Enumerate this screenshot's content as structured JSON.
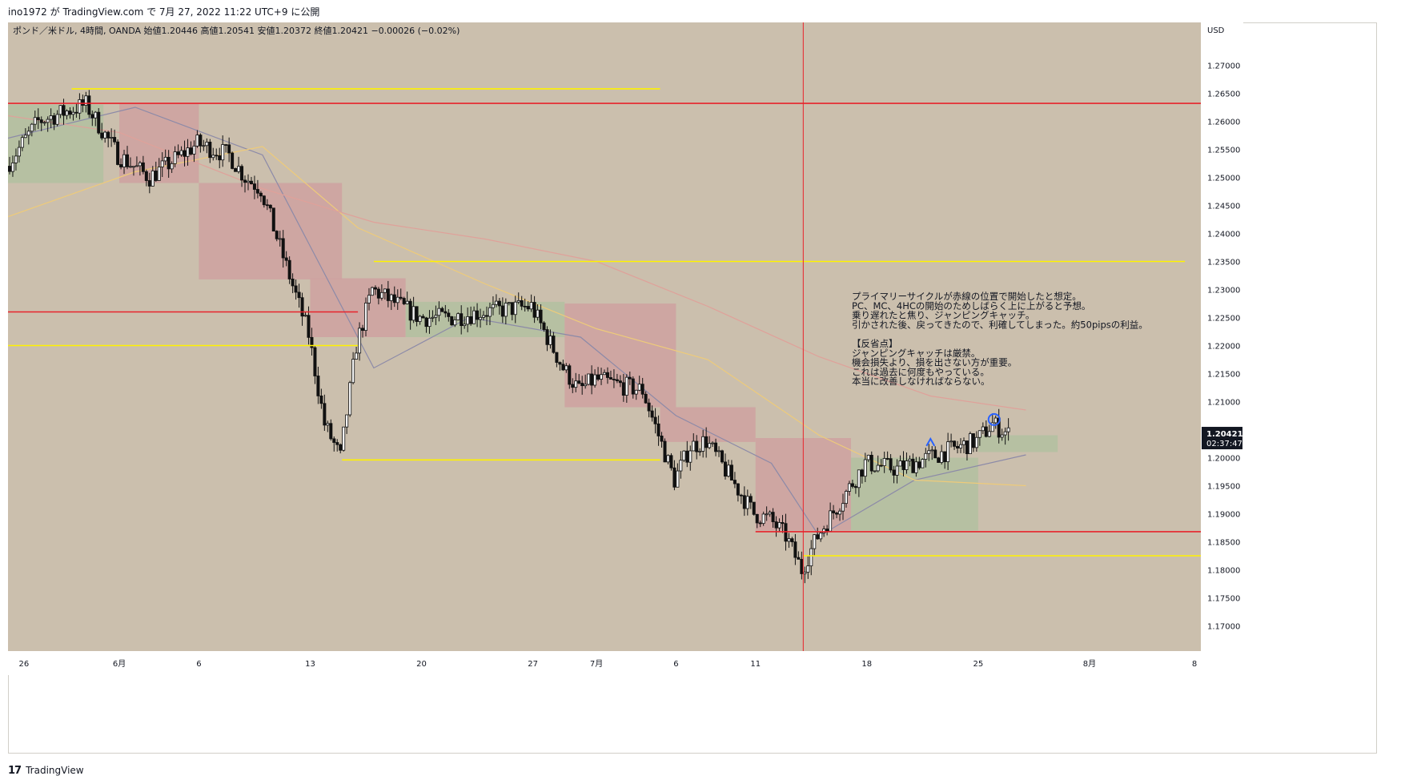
{
  "header": {
    "publish_line": "ino1972 が TradingView.com で 7月 27, 2022 11:22 UTC+9 に公開",
    "symbol_info": "ポンド／米ドル, 4時間, OANDA  始値1.20446  高値1.20541  安値1.20372  終値1.20421  −0.00026 (−0.02%)"
  },
  "footer": {
    "logo_mark": "17",
    "brand": "TradingView"
  },
  "colors": {
    "background": "#cbbfad",
    "bull_box": "#b3c0a0",
    "bear_box": "#cfa1a0",
    "red_line": "#e8232b",
    "yellow_line": "#fff200",
    "candle": "#111111",
    "ma_fast": "#8c8aa8",
    "ma_mid": "#eecb7a",
    "ma_slow": "#dfa19a"
  },
  "price_axis": {
    "currency": "USD",
    "current_price": "1.20421",
    "countdown": "02:37:47"
  },
  "annotation": {
    "lines": [
      "プライマリーサイクルが赤線の位置で開始したと想定。",
      "PC、MC、4HCの開始のためしばらく上に上がると予想。",
      "乗り遅れたと焦り、ジャンピングキャッチ。",
      "引かされた後、戻ってきたので、利確してしまった。約50pipsの利益。",
      "",
      "【反省点】",
      "ジャンピングキャッチは厳禁。",
      "機会損失より、損を出さない方が重要。",
      "これは過去に何度もやっている。",
      "本当に改善しなければならない。"
    ]
  },
  "chart_data": {
    "type": "candlestick",
    "title": "ポンド／米ドル, 4時間, OANDA",
    "ohlc_last": {
      "open": 1.20446,
      "high": 1.20541,
      "low": 1.20372,
      "close": 1.20421,
      "change": -0.00026,
      "change_pct": -0.02
    },
    "y_axis": {
      "ticks": [
        "1.27000",
        "1.26500",
        "1.26000",
        "1.25500",
        "1.25000",
        "1.24500",
        "1.24000",
        "1.23500",
        "1.23000",
        "1.22500",
        "1.22000",
        "1.21500",
        "1.21000",
        "1.20500",
        "1.20000",
        "1.19500",
        "1.19000",
        "1.18500",
        "1.18000",
        "1.17500",
        "1.17000"
      ],
      "range": [
        1.1655,
        1.2745
      ]
    },
    "x_axis": {
      "ticks": [
        "26",
        "6月",
        "6",
        "13",
        "20",
        "27",
        "7月",
        "6",
        "11",
        "18",
        "25",
        "8月",
        "8"
      ],
      "range": [
        "2022-05-25",
        "2022-08-08"
      ]
    },
    "horizontal_lines": [
      {
        "color": "red",
        "price": 1.2632,
        "from": "2022-05-25",
        "to": "2022-08-08"
      },
      {
        "color": "red",
        "price": 1.226,
        "from": "2022-05-25",
        "to": "2022-06-16"
      },
      {
        "color": "red",
        "price": 1.1868,
        "from": "2022-07-11",
        "to": "2022-08-08"
      },
      {
        "color": "yellow",
        "price": 1.2658,
        "from": "2022-05-29",
        "to": "2022-07-05"
      },
      {
        "color": "yellow",
        "price": 1.235,
        "from": "2022-06-17",
        "to": "2022-08-07"
      },
      {
        "color": "yellow",
        "price": 1.22,
        "from": "2022-05-25",
        "to": "2022-06-16"
      },
      {
        "color": "yellow",
        "price": 1.1996,
        "from": "2022-06-15",
        "to": "2022-07-05"
      },
      {
        "color": "yellow",
        "price": 1.1825,
        "from": "2022-07-14",
        "to": "2022-08-08"
      }
    ],
    "vertical_lines": [
      {
        "color": "red",
        "date": "2022-07-14"
      }
    ],
    "boxes": [
      {
        "kind": "bull",
        "from": "2022-05-25",
        "to": "2022-05-31",
        "low": 1.249,
        "high": 1.263
      },
      {
        "kind": "bear",
        "from": "2022-06-01",
        "to": "2022-06-06",
        "low": 1.249,
        "high": 1.2632
      },
      {
        "kind": "bear",
        "from": "2022-06-06",
        "to": "2022-06-15",
        "low": 1.2318,
        "high": 1.249
      },
      {
        "kind": "bear",
        "from": "2022-06-13",
        "to": "2022-06-19",
        "low": 1.2215,
        "high": 1.232
      },
      {
        "kind": "bull",
        "from": "2022-06-19",
        "to": "2022-06-29",
        "low": 1.2215,
        "high": 1.2278
      },
      {
        "kind": "bear",
        "from": "2022-06-29",
        "to": "2022-07-06",
        "low": 1.209,
        "high": 1.2275
      },
      {
        "kind": "bear",
        "from": "2022-07-05",
        "to": "2022-07-11",
        "low": 1.2028,
        "high": 1.209
      },
      {
        "kind": "bear",
        "from": "2022-07-11",
        "to": "2022-07-17",
        "low": 1.187,
        "high": 1.2035
      },
      {
        "kind": "bull",
        "from": "2022-07-17",
        "to": "2022-07-25",
        "low": 1.187,
        "high": 1.2
      },
      {
        "kind": "bull",
        "from": "2022-07-25",
        "to": "2022-07-30",
        "low": 1.201,
        "high": 1.204
      }
    ],
    "moving_averages": [
      {
        "name": "fast",
        "points": [
          [
            "2022-05-25",
            1.257
          ],
          [
            "2022-06-02",
            1.2625
          ],
          [
            "2022-06-10",
            1.254
          ],
          [
            "2022-06-17",
            1.216
          ],
          [
            "2022-06-23",
            1.225
          ],
          [
            "2022-06-30",
            1.2215
          ],
          [
            "2022-07-06",
            1.2075
          ],
          [
            "2022-07-12",
            1.199
          ],
          [
            "2022-07-15",
            1.186
          ],
          [
            "2022-07-21",
            1.196
          ],
          [
            "2022-07-28",
            1.2005
          ]
        ]
      },
      {
        "name": "mid",
        "points": [
          [
            "2022-05-25",
            1.243
          ],
          [
            "2022-06-02",
            1.251
          ],
          [
            "2022-06-10",
            1.2555
          ],
          [
            "2022-06-16",
            1.241
          ],
          [
            "2022-06-24",
            1.231
          ],
          [
            "2022-07-01",
            1.223
          ],
          [
            "2022-07-08",
            1.2175
          ],
          [
            "2022-07-15",
            1.204
          ],
          [
            "2022-07-21",
            1.196
          ],
          [
            "2022-07-28",
            1.195
          ]
        ]
      },
      {
        "name": "slow",
        "points": [
          [
            "2022-05-25",
            1.261
          ],
          [
            "2022-06-01",
            1.258
          ],
          [
            "2022-06-10",
            1.248
          ],
          [
            "2022-06-17",
            1.242
          ],
          [
            "2022-06-24",
            1.239
          ],
          [
            "2022-07-01",
            1.235
          ],
          [
            "2022-07-08",
            1.227
          ],
          [
            "2022-07-15",
            1.218
          ],
          [
            "2022-07-22",
            1.211
          ],
          [
            "2022-07-28",
            1.2085
          ]
        ]
      }
    ],
    "markers": [
      {
        "shape": "circle",
        "date": "2022-07-26",
        "price": 1.2068
      },
      {
        "shape": "arrow-up",
        "date": "2022-07-22",
        "price": 1.2028
      }
    ],
    "price_path": [
      [
        "2022-05-25",
        1.252
      ],
      [
        "2022-05-27",
        1.26
      ],
      [
        "2022-05-30",
        1.263
      ],
      [
        "2022-06-01",
        1.254
      ],
      [
        "2022-06-03",
        1.25
      ],
      [
        "2022-06-06",
        1.256
      ],
      [
        "2022-06-08",
        1.254
      ],
      [
        "2022-06-09",
        1.25
      ],
      [
        "2022-06-10",
        1.248
      ],
      [
        "2022-06-13",
        1.222
      ],
      [
        "2022-06-14",
        1.206
      ],
      [
        "2022-06-15",
        1.2
      ],
      [
        "2022-06-16",
        1.22
      ],
      [
        "2022-06-17",
        1.23
      ],
      [
        "2022-06-20",
        1.225
      ],
      [
        "2022-06-22",
        1.225
      ],
      [
        "2022-06-24",
        1.226
      ],
      [
        "2022-06-27",
        1.227
      ],
      [
        "2022-06-29",
        1.216
      ],
      [
        "2022-06-30",
        1.212
      ],
      [
        "2022-07-01",
        1.214
      ],
      [
        "2022-07-04",
        1.212
      ],
      [
        "2022-07-06",
        1.196
      ],
      [
        "2022-07-07",
        1.202
      ],
      [
        "2022-07-08",
        1.203
      ],
      [
        "2022-07-11",
        1.19
      ],
      [
        "2022-07-12",
        1.189
      ],
      [
        "2022-07-13",
        1.186
      ],
      [
        "2022-07-14",
        1.18
      ],
      [
        "2022-07-15",
        1.186
      ],
      [
        "2022-07-18",
        1.199
      ],
      [
        "2022-07-20",
        1.198
      ],
      [
        "2022-07-22",
        1.2
      ],
      [
        "2022-07-25",
        1.203
      ],
      [
        "2022-07-26",
        1.206
      ],
      [
        "2022-07-27",
        1.2042
      ]
    ]
  }
}
